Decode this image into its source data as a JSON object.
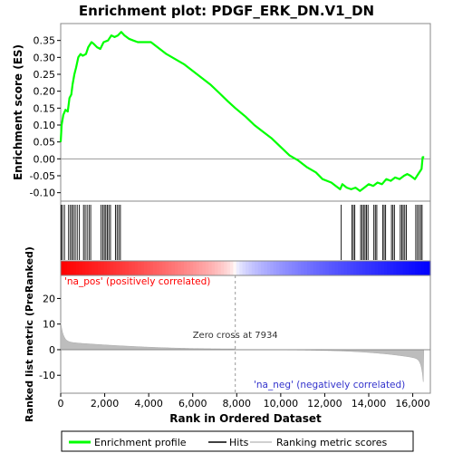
{
  "chart_data": {
    "type": "line",
    "title": "Enrichment plot: PDGF_ERK_DN.V1_DN",
    "xlabel": "Rank in Ordered Dataset",
    "ylabel_top": "Enrichment score (ES)",
    "ylabel_bottom": "Ranked list metric (PreRanked)",
    "xlim": [
      0,
      16800
    ],
    "x_ticks": [
      0,
      2000,
      4000,
      6000,
      8000,
      10000,
      12000,
      14000,
      16000
    ],
    "x_tick_labels": [
      "0",
      "2,000",
      "4,000",
      "6,000",
      "8,000",
      "10,000",
      "12,000",
      "14,000",
      "16,000"
    ],
    "es_ylim": [
      -0.125,
      0.4
    ],
    "es_y_ticks": [
      -0.1,
      -0.05,
      0.0,
      0.05,
      0.1,
      0.15,
      0.2,
      0.25,
      0.3,
      0.35
    ],
    "es_y_tick_labels": [
      "-0.10",
      "-0.05",
      "0.00",
      "0.05",
      "0.10",
      "0.15",
      "0.20",
      "0.25",
      "0.30",
      "0.35"
    ],
    "metric_ylim": [
      -17,
      29
    ],
    "metric_y_ticks": [
      -10,
      0,
      10,
      20
    ],
    "metric_y_tick_labels": [
      "-10",
      "0",
      "10",
      "20"
    ],
    "grid": false,
    "legend_position": "bottom",
    "series": [
      {
        "name": "Enrichment profile",
        "color": "#00ff00",
        "points": [
          [
            0,
            0.05
          ],
          [
            40,
            0.1
          ],
          [
            120,
            0.13
          ],
          [
            220,
            0.145
          ],
          [
            320,
            0.14
          ],
          [
            400,
            0.18
          ],
          [
            480,
            0.19
          ],
          [
            540,
            0.22
          ],
          [
            620,
            0.25
          ],
          [
            700,
            0.27
          ],
          [
            800,
            0.3
          ],
          [
            900,
            0.31
          ],
          [
            1000,
            0.305
          ],
          [
            1150,
            0.31
          ],
          [
            1250,
            0.33
          ],
          [
            1400,
            0.345
          ],
          [
            1500,
            0.34
          ],
          [
            1650,
            0.33
          ],
          [
            1800,
            0.325
          ],
          [
            1950,
            0.345
          ],
          [
            2150,
            0.35
          ],
          [
            2300,
            0.365
          ],
          [
            2450,
            0.36
          ],
          [
            2600,
            0.365
          ],
          [
            2750,
            0.375
          ],
          [
            2900,
            0.365
          ],
          [
            3100,
            0.355
          ],
          [
            3300,
            0.35
          ],
          [
            3500,
            0.345
          ],
          [
            3700,
            0.345
          ],
          [
            3900,
            0.345
          ],
          [
            4100,
            0.345
          ],
          [
            4400,
            0.33
          ],
          [
            4800,
            0.31
          ],
          [
            5200,
            0.295
          ],
          [
            5600,
            0.28
          ],
          [
            6000,
            0.26
          ],
          [
            6400,
            0.24
          ],
          [
            6800,
            0.22
          ],
          [
            7200,
            0.195
          ],
          [
            7600,
            0.17
          ],
          [
            7934,
            0.15
          ],
          [
            8400,
            0.125
          ],
          [
            8800,
            0.1
          ],
          [
            9200,
            0.08
          ],
          [
            9600,
            0.06
          ],
          [
            10000,
            0.035
          ],
          [
            10400,
            0.01
          ],
          [
            10800,
            -0.005
          ],
          [
            11200,
            -0.025
          ],
          [
            11600,
            -0.04
          ],
          [
            11900,
            -0.06
          ],
          [
            12100,
            -0.065
          ],
          [
            12300,
            -0.07
          ],
          [
            12500,
            -0.08
          ],
          [
            12700,
            -0.09
          ],
          [
            12800,
            -0.075
          ],
          [
            13000,
            -0.085
          ],
          [
            13200,
            -0.09
          ],
          [
            13400,
            -0.085
          ],
          [
            13600,
            -0.095
          ],
          [
            13800,
            -0.085
          ],
          [
            14000,
            -0.075
          ],
          [
            14200,
            -0.08
          ],
          [
            14400,
            -0.07
          ],
          [
            14600,
            -0.075
          ],
          [
            14800,
            -0.06
          ],
          [
            15000,
            -0.065
          ],
          [
            15200,
            -0.055
          ],
          [
            15400,
            -0.06
          ],
          [
            15600,
            -0.05
          ],
          [
            15750,
            -0.045
          ],
          [
            15900,
            -0.05
          ],
          [
            16100,
            -0.06
          ],
          [
            16250,
            -0.045
          ],
          [
            16400,
            -0.03
          ],
          [
            16450,
            0.005
          ],
          [
            16520,
            0.005
          ]
        ]
      }
    ],
    "legend": [
      {
        "name": "Enrichment profile",
        "color": "#00ff00"
      },
      {
        "name": "Hits",
        "color": "#000000"
      },
      {
        "name": "Ranking metric scores",
        "color": "#c0c0c0"
      }
    ],
    "annotations": {
      "zero_cross": "Zero cross at 7934",
      "zero_cross_rank": 7934,
      "pos_label": "'na_pos' (positively correlated)",
      "neg_label": "'na_neg' (negatively correlated)",
      "pos_color": "#ff0000",
      "neg_color": "#0000ff"
    }
  }
}
